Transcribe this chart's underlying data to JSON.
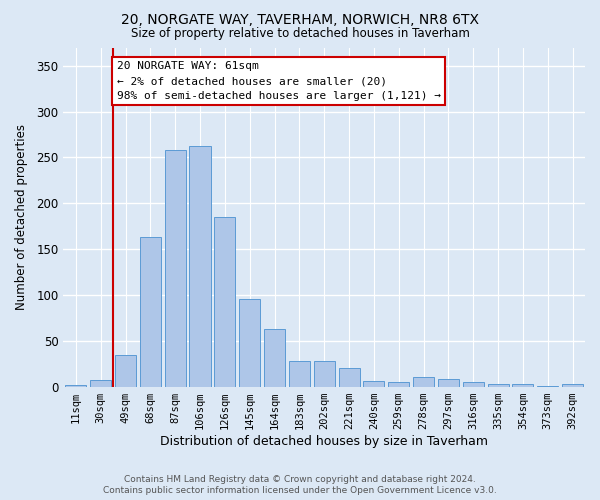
{
  "title1": "20, NORGATE WAY, TAVERHAM, NORWICH, NR8 6TX",
  "title2": "Size of property relative to detached houses in Taverham",
  "xlabel": "Distribution of detached houses by size in Taverham",
  "ylabel": "Number of detached properties",
  "bar_labels": [
    "11sqm",
    "30sqm",
    "49sqm",
    "68sqm",
    "87sqm",
    "106sqm",
    "126sqm",
    "145sqm",
    "164sqm",
    "183sqm",
    "202sqm",
    "221sqm",
    "240sqm",
    "259sqm",
    "278sqm",
    "297sqm",
    "316sqm",
    "335sqm",
    "354sqm",
    "373sqm",
    "392sqm"
  ],
  "bar_values": [
    2,
    7,
    35,
    163,
    258,
    263,
    185,
    96,
    63,
    28,
    28,
    20,
    6,
    5,
    10,
    8,
    5,
    3,
    3,
    1,
    3
  ],
  "bar_color": "#aec6e8",
  "bar_edge_color": "#5b9bd5",
  "vline_pos": 1.5,
  "vline_color": "#cc0000",
  "annotation_text": "20 NORGATE WAY: 61sqm\n← 2% of detached houses are smaller (20)\n98% of semi-detached houses are larger (1,121) →",
  "annotation_box_facecolor": "#ffffff",
  "annotation_box_edgecolor": "#cc0000",
  "ylim": [
    0,
    370
  ],
  "yticks": [
    0,
    50,
    100,
    150,
    200,
    250,
    300,
    350
  ],
  "footer1": "Contains HM Land Registry data © Crown copyright and database right 2024.",
  "footer2": "Contains public sector information licensed under the Open Government Licence v3.0.",
  "fig_bg_color": "#dce8f5",
  "plot_bg_color": "#dce8f5",
  "grid_color": "#ffffff"
}
